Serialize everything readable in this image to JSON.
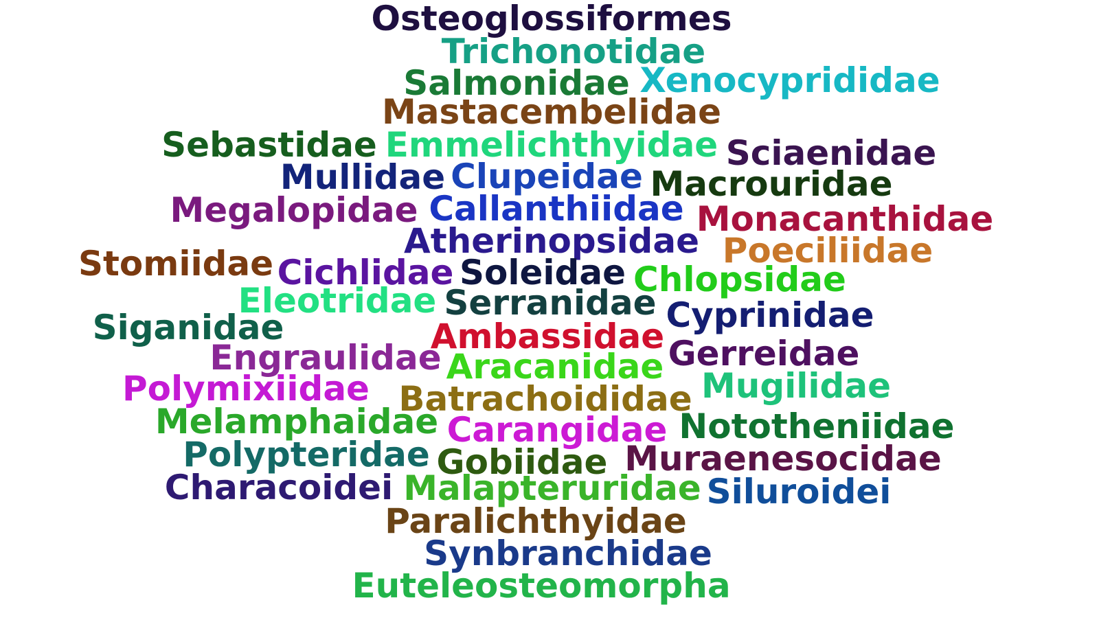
{
  "words": [
    {
      "text": "Osteoglossiformes",
      "color": "#1e0f40"
    },
    {
      "text": "Trichonotidae",
      "color": "#16a085"
    },
    {
      "text": "Salmonidae",
      "color": "#1a7a36"
    },
    {
      "text": "Xenocyprididae",
      "color": "#17b8c4"
    },
    {
      "text": "Mastacembelidae",
      "color": "#7a4416"
    },
    {
      "text": "Sebastidae",
      "color": "#165e1e"
    },
    {
      "text": "Emmelichthyidae",
      "color": "#20d67c"
    },
    {
      "text": "Sciaenidae",
      "color": "#3a1450"
    },
    {
      "text": "Mullidae",
      "color": "#13247a"
    },
    {
      "text": "Clupeidae",
      "color": "#1a44b8"
    },
    {
      "text": "Macrouridae",
      "color": "#163a10"
    },
    {
      "text": "Megalopidae",
      "color": "#7a1a7e"
    },
    {
      "text": "Callanthiidae",
      "color": "#1a35c4"
    },
    {
      "text": "Monacanthidae",
      "color": "#a8123e"
    },
    {
      "text": "Atherinopsidae",
      "color": "#2a1a8e"
    },
    {
      "text": "Poeciliidae",
      "color": "#c8772a"
    },
    {
      "text": "Stomiidae",
      "color": "#7a3a10"
    },
    {
      "text": "Cichlidae",
      "color": "#5a14a0"
    },
    {
      "text": "Soleidae",
      "color": "#0e1640"
    },
    {
      "text": "Chlopsidae",
      "color": "#22cc1a"
    },
    {
      "text": "Eleotridae",
      "color": "#22e082"
    },
    {
      "text": "Serranidae",
      "color": "#134040"
    },
    {
      "text": "Cyprinidae",
      "color": "#141e72"
    },
    {
      "text": "Siganidae",
      "color": "#10604a"
    },
    {
      "text": "Ambassidae",
      "color": "#d0102e"
    },
    {
      "text": "Engraulidae",
      "color": "#8a2896"
    },
    {
      "text": "Gerreidae",
      "color": "#4e1060"
    },
    {
      "text": "Aracanidae",
      "color": "#3ad61a"
    },
    {
      "text": "Polymixiidae",
      "color": "#c41ad4"
    },
    {
      "text": "Mugilidae",
      "color": "#1ec27a"
    },
    {
      "text": "Batrachoididae",
      "color": "#8c6e14"
    },
    {
      "text": "Melamphaidae",
      "color": "#2aa82a"
    },
    {
      "text": "Carangidae",
      "color": "#cc1ad4"
    },
    {
      "text": "Nototheniidae",
      "color": "#107230"
    },
    {
      "text": "Polypteridae",
      "color": "#146a66"
    },
    {
      "text": "Gobiidae",
      "color": "#2e5a10"
    },
    {
      "text": "Muraenesocidae",
      "color": "#5a1446"
    },
    {
      "text": "Characoidei",
      "color": "#2e1a72"
    },
    {
      "text": "Malapteruridae",
      "color": "#3ab42a"
    },
    {
      "text": "Siluroidei",
      "color": "#104e9a"
    },
    {
      "text": "Paralichthyidae",
      "color": "#6a4416"
    },
    {
      "text": "Synbranchidae",
      "color": "#1a3a8a"
    },
    {
      "text": "Euteleosteomorpha",
      "color": "#22b44a"
    }
  ]
}
